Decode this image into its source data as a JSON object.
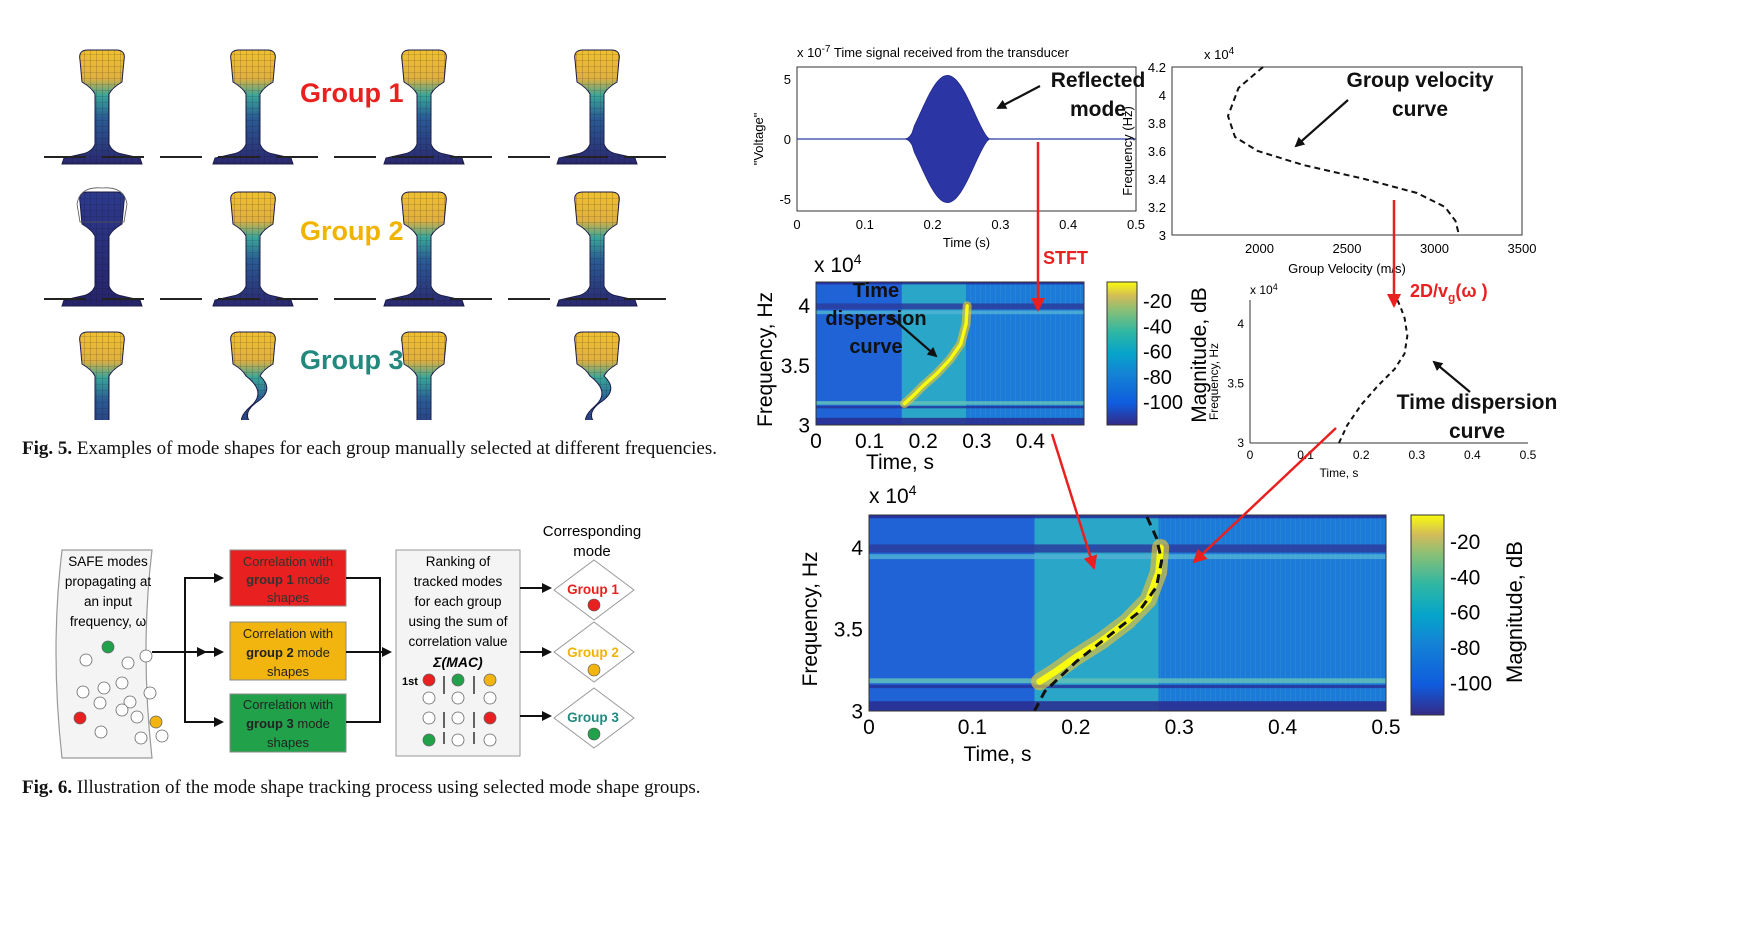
{
  "fig5": {
    "group_labels": [
      {
        "text": "Group 1",
        "color": "#e8201f"
      },
      {
        "text": "Group 2",
        "color": "#f0b400"
      },
      {
        "text": "Group 3",
        "color": "#23897f"
      }
    ],
    "caption_label": "Fig. 5.",
    "caption_text": " Examples of mode shapes for each group manually selected at different frequencies."
  },
  "fig6": {
    "input_box": [
      "SAFE modes",
      "propagating at",
      "an input",
      "frequency, ω"
    ],
    "corr_boxes": [
      {
        "pre": "Correlation with",
        "bold": "group 1",
        "post": "mode",
        "last": "shapes",
        "color": "#e8201f"
      },
      {
        "pre": "Correlation with",
        "bold": "group 2",
        "post": "mode",
        "last": "shapes",
        "color": "#f2b50f"
      },
      {
        "pre": "Correlation with",
        "bold": "group 3",
        "post": "mode",
        "last": "shapes",
        "color": "#21a24a"
      }
    ],
    "ranking_box": [
      "Ranking of",
      "tracked modes",
      "for each group",
      "using the sum of",
      "correlation value"
    ],
    "sigma": "Σ(MAC)",
    "first_label": "1st",
    "corresponding": [
      "Corresponding",
      "mode"
    ],
    "outputs": [
      {
        "text": "Group 1",
        "color": "#e8201f"
      },
      {
        "text": "Group 2",
        "color": "#f0b400"
      },
      {
        "text": "Group 3",
        "color": "#23897f"
      }
    ],
    "caption_label": "Fig. 6.",
    "caption_text": " Illustration of the mode shape tracking process using selected mode shape groups."
  },
  "annotations": {
    "reflected": [
      "Reflected",
      "mode"
    ],
    "group_velocity": [
      "Group velocity",
      "curve"
    ],
    "time_dispersion_small": [
      "Time",
      "dispersion",
      "curve"
    ],
    "time_dispersion_right": [
      "Time dispersion",
      "curve"
    ],
    "stft": "STFT",
    "transform": "2D/v",
    "transform_sub": "g",
    "transform_tail": "(ω )"
  },
  "chart_data": [
    {
      "type": "line",
      "title": "Time signal received from the transducer",
      "multiplier": "x 10",
      "multiplier_exp": "-7",
      "xlabel": "Time (s)",
      "ylabel": "\"Voltage\"",
      "xlim": [
        0,
        0.5
      ],
      "ylim": [
        -6,
        6
      ],
      "xticks": [
        "0",
        "0.1",
        "0.2",
        "0.3",
        "0.4",
        "0.5"
      ],
      "yticks": [
        "5",
        "0",
        "-5"
      ],
      "series": [
        {
          "burst_start": 0.16,
          "burst_end": 0.29,
          "peak": 5.3
        }
      ]
    },
    {
      "type": "line",
      "multiplier": "x 10",
      "multiplier_exp": "4",
      "xlabel": "Group Velocity (m/s)",
      "ylabel": "Frequency (Hz)",
      "xlim": [
        1500,
        3500
      ],
      "ylim": [
        3.0,
        4.2
      ],
      "xticks": [
        "2000",
        "2500",
        "3000",
        "3500"
      ],
      "yticks": [
        "4.2",
        "4",
        "3.8",
        "3.6",
        "3.4",
        "3.2",
        "3"
      ],
      "x": [
        2020,
        1880,
        1820,
        1860,
        1990,
        2250,
        2600,
        2900,
        3060,
        3120,
        3140
      ],
      "y": [
        4.2,
        4.05,
        3.85,
        3.7,
        3.6,
        3.5,
        3.4,
        3.3,
        3.2,
        3.1,
        3.0
      ]
    },
    {
      "type": "heatmap",
      "multiplier": "x 10",
      "multiplier_exp": "4",
      "xlabel": "Time, s",
      "ylabel": "Frequency, Hz",
      "xlim": [
        0,
        0.5
      ],
      "ylim": [
        3.0,
        4.2
      ],
      "xticks": [
        "0",
        "0.1",
        "0.2",
        "0.3",
        "0.4"
      ],
      "yticks": [
        "4",
        "3.5",
        "3"
      ],
      "colorbar_label": "Magnitude, dB",
      "colorbar_ticks": [
        "-20",
        "-40",
        "-60",
        "-80",
        "-100"
      ]
    },
    {
      "type": "line",
      "multiplier": "x 10",
      "multiplier_exp": "4",
      "xlabel": "Time, s",
      "ylabel": "Frequency, Hz",
      "xlim": [
        0,
        0.5
      ],
      "ylim": [
        3.0,
        4.2
      ],
      "xticks": [
        "0",
        "0.1",
        "0.2",
        "0.3",
        "0.4",
        "0.5"
      ],
      "yticks": [
        "4",
        "3.5",
        "3"
      ],
      "x": [
        0.16,
        0.175,
        0.2,
        0.23,
        0.26,
        0.278,
        0.283,
        0.278,
        0.27,
        0.265
      ],
      "y": [
        3.0,
        3.15,
        3.32,
        3.48,
        3.62,
        3.75,
        3.9,
        4.05,
        4.15,
        4.2
      ]
    },
    {
      "type": "heatmap",
      "multiplier": "x 10",
      "multiplier_exp": "4",
      "xlabel": "Time, s",
      "ylabel": "Frequency, Hz",
      "xlim": [
        0,
        0.5
      ],
      "ylim": [
        3.0,
        4.2
      ],
      "xticks": [
        "0",
        "0.1",
        "0.2",
        "0.3",
        "0.4",
        "0.5"
      ],
      "yticks": [
        "4",
        "3.5",
        "3"
      ],
      "colorbar_label": "Magnitude, dB",
      "colorbar_ticks": [
        "-20",
        "-40",
        "-60",
        "-80",
        "-100"
      ]
    }
  ]
}
